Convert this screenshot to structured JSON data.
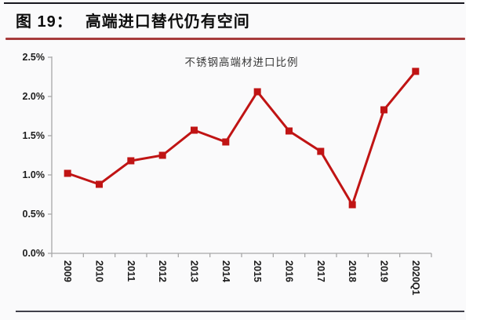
{
  "figure": {
    "label": "图 19：",
    "title": "高端进口替代仍有空间"
  },
  "chart_data": {
    "type": "line",
    "title": "不锈钢高端材进口比例",
    "categories": [
      "2009",
      "2010",
      "2011",
      "2012",
      "2013",
      "2014",
      "2015",
      "2016",
      "2017",
      "2018",
      "2019",
      "2020Q1"
    ],
    "values": [
      1.02,
      0.88,
      1.18,
      1.25,
      1.57,
      1.42,
      2.06,
      1.56,
      1.3,
      0.62,
      1.83,
      2.32
    ],
    "series_name": "不锈钢高端材进口比例",
    "xlabel": "",
    "ylabel": "",
    "ylim": [
      0,
      2.5
    ],
    "ytick_step": 0.5,
    "ytick_labels": [
      "0.0%",
      "0.5%",
      "1.0%",
      "1.5%",
      "2.0%",
      "2.5%"
    ],
    "x_label_rotation": 90,
    "grid": false,
    "legend_position": "none",
    "marker": "square"
  },
  "colors": {
    "series": "#c01414",
    "accent_rule": "#a73c3c",
    "top_rule": "#17171f",
    "axis": "#a8a8a8",
    "tick_label": "#1c1c1c",
    "chart_title": "#3a3a3a",
    "background": "#fafafb"
  }
}
